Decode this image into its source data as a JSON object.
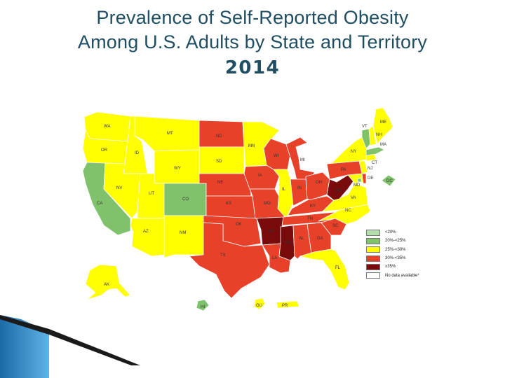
{
  "title": {
    "line1": "Prevalence of Self-Reported Obesity",
    "line2": "Among U.S. Adults by State and Territory",
    "year": "2014"
  },
  "colors": {
    "c_lt20": "#b3deab",
    "c_20_25": "#7fc26b",
    "c_25_30": "#ffff00",
    "c_30_35": "#e8412a",
    "c_ge35": "#7a0b0d",
    "c_nodata": "#ffffff",
    "title": "#1f4e63",
    "accent_blue": "#2b7bb9"
  },
  "legend": [
    {
      "label": "<20%",
      "color": "#b3deab"
    },
    {
      "label": "20%-<25%",
      "color": "#7fc26b"
    },
    {
      "label": "25%-<30%",
      "color": "#ffff00"
    },
    {
      "label": "30%-<35%",
      "color": "#e8412a"
    },
    {
      "label": "≥35%",
      "color": "#7a0b0d"
    },
    {
      "label": "No data available*",
      "color": "#ffffff"
    }
  ],
  "states": {
    "WA": {
      "label": "WA",
      "category": "25%-<30%"
    },
    "OR": {
      "label": "OR",
      "category": "25%-<30%"
    },
    "CA": {
      "label": "CA",
      "category": "20%-<25%"
    },
    "ID": {
      "label": "ID",
      "category": "25%-<30%"
    },
    "NV": {
      "label": "NV",
      "category": "25%-<30%"
    },
    "MT": {
      "label": "MT",
      "category": "25%-<30%"
    },
    "WY": {
      "label": "WY",
      "category": "25%-<30%"
    },
    "UT": {
      "label": "UT",
      "category": "25%-<30%"
    },
    "AZ": {
      "label": "AZ",
      "category": "25%-<30%"
    },
    "CO": {
      "label": "CO",
      "category": "20%-<25%"
    },
    "NM": {
      "label": "NM",
      "category": "25%-<30%"
    },
    "ND": {
      "label": "ND",
      "category": "30%-<35%"
    },
    "SD": {
      "label": "SD",
      "category": "25%-<30%"
    },
    "NE": {
      "label": "NE",
      "category": "30%-<35%"
    },
    "KS": {
      "label": "KS",
      "category": "30%-<35%"
    },
    "OK": {
      "label": "OK",
      "category": "30%-<35%"
    },
    "TX": {
      "label": "TX",
      "category": "30%-<35%"
    },
    "MN": {
      "label": "MN",
      "category": "25%-<30%"
    },
    "IA": {
      "label": "IA",
      "category": "30%-<35%"
    },
    "MO": {
      "label": "MO",
      "category": "30%-<35%"
    },
    "AR": {
      "label": "AR",
      "category": "≥35%"
    },
    "LA": {
      "label": "LA",
      "category": "30%-<35%"
    },
    "WI": {
      "label": "WI",
      "category": "30%-<35%"
    },
    "IL": {
      "label": "IL",
      "category": "25%-<30%"
    },
    "MI": {
      "label": "MI",
      "category": "30%-<35%"
    },
    "IN": {
      "label": "IN",
      "category": "30%-<35%"
    },
    "OH": {
      "label": "OH",
      "category": "30%-<35%"
    },
    "KY": {
      "label": "KY",
      "category": "30%-<35%"
    },
    "TN": {
      "label": "TN",
      "category": "30%-<35%"
    },
    "MS": {
      "label": "MS",
      "category": "≥35%"
    },
    "AL": {
      "label": "AL",
      "category": "30%-<35%"
    },
    "GA": {
      "label": "GA",
      "category": "30%-<35%"
    },
    "FL": {
      "label": "FL",
      "category": "25%-<30%"
    },
    "SC": {
      "label": "SC",
      "category": "30%-<35%"
    },
    "NC": {
      "label": "NC",
      "category": "25%-<30%"
    },
    "VA": {
      "label": "VA",
      "category": "25%-<30%"
    },
    "WV": {
      "label": "WV",
      "category": "≥35%"
    },
    "PA": {
      "label": "PA",
      "category": "30%-<35%"
    },
    "NY": {
      "label": "NY",
      "category": "25%-<30%"
    },
    "VT": {
      "label": "VT",
      "category": "20%-<25%"
    },
    "NH": {
      "label": "NH",
      "category": "25%-<30%"
    },
    "ME": {
      "label": "ME",
      "category": "25%-<30%"
    },
    "MA": {
      "label": "MA",
      "category": "20%-<25%"
    },
    "CT": {
      "label": "CT",
      "category": "25%-<30%"
    },
    "NJ": {
      "label": "NJ",
      "category": "25%-<30%"
    },
    "DE": {
      "label": "DE",
      "category": "30%-<35%"
    },
    "MD": {
      "label": "MD",
      "category": "25%-<30%"
    },
    "DC": {
      "label": "DC",
      "category": "20%-<25%"
    },
    "AK": {
      "label": "AK",
      "category": "25%-<30%"
    },
    "HI": {
      "label": "HI",
      "category": "20%-<25%"
    },
    "GU": {
      "label": "GU",
      "category": "25%-<30%"
    },
    "PR": {
      "label": "PR",
      "category": "25%-<30%"
    }
  }
}
